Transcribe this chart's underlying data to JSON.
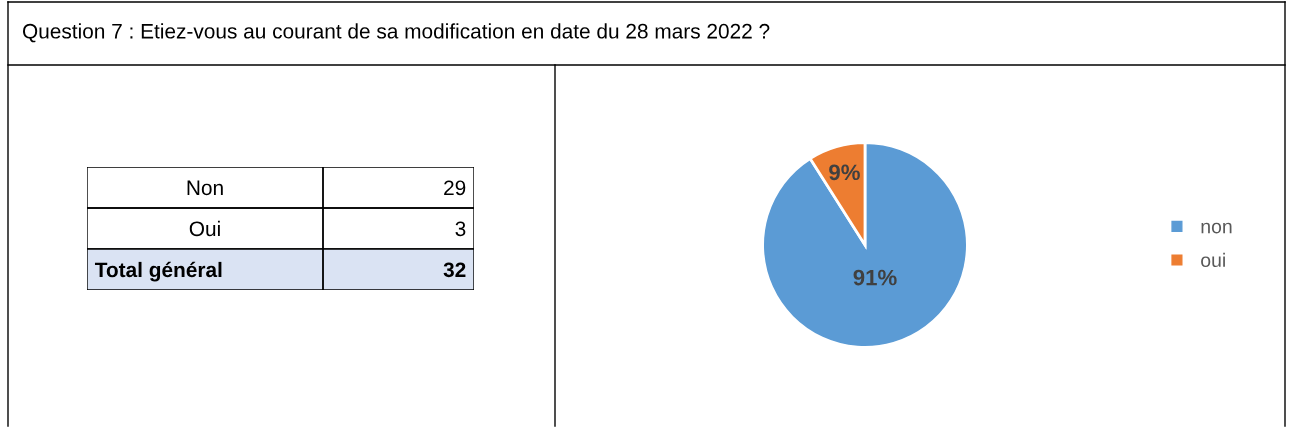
{
  "chart_data": [
    {
      "type": "other",
      "title": "Question 7 : Etiez-vous au courant de sa modification en date du 28 mars 2022 ?",
      "categories": [
        "Non",
        "Oui",
        "Total général"
      ],
      "values": [
        29,
        3,
        32
      ],
      "data_labels": true
    },
    {
      "type": "pie",
      "categories": [
        "non",
        "oui"
      ],
      "values": [
        91,
        9
      ],
      "colors": [
        "#5b9bd5",
        "#ed7d31"
      ],
      "value_labels": [
        "91%",
        "9%"
      ],
      "legend": "right"
    }
  ]
}
